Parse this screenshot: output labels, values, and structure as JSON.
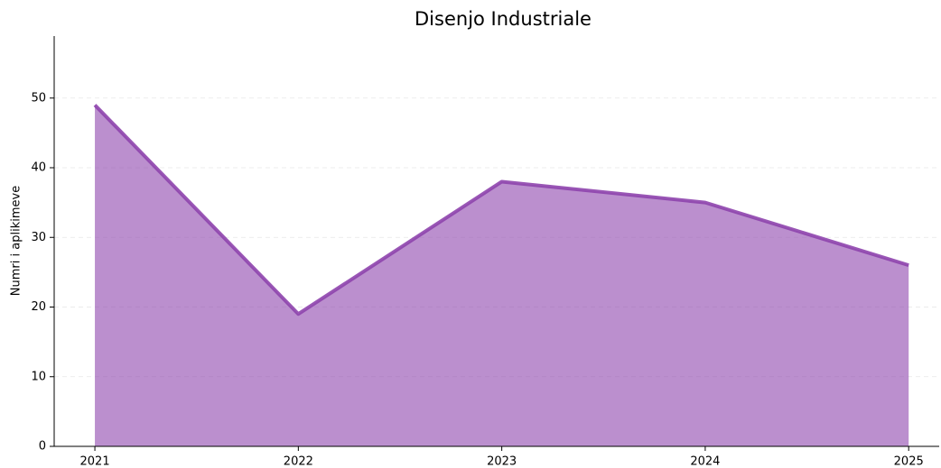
{
  "chart_data": {
    "type": "area",
    "title": "Disenjo Industriale",
    "ylabel": "Numri i aplikimeve",
    "x": [
      2021,
      2022,
      2023,
      2024,
      2025
    ],
    "series": [
      {
        "color": "#8e44ad",
        "values": [
          49,
          19,
          38,
          35,
          26
        ]
      }
    ],
    "xlim": [
      2020.8,
      2025.15
    ],
    "xticks": [
      2021,
      2022,
      2023,
      2024,
      2025
    ],
    "ylim": [
      0,
      58.9
    ],
    "yticks": [
      0,
      10,
      20,
      30,
      40,
      50
    ],
    "grid": true
  }
}
